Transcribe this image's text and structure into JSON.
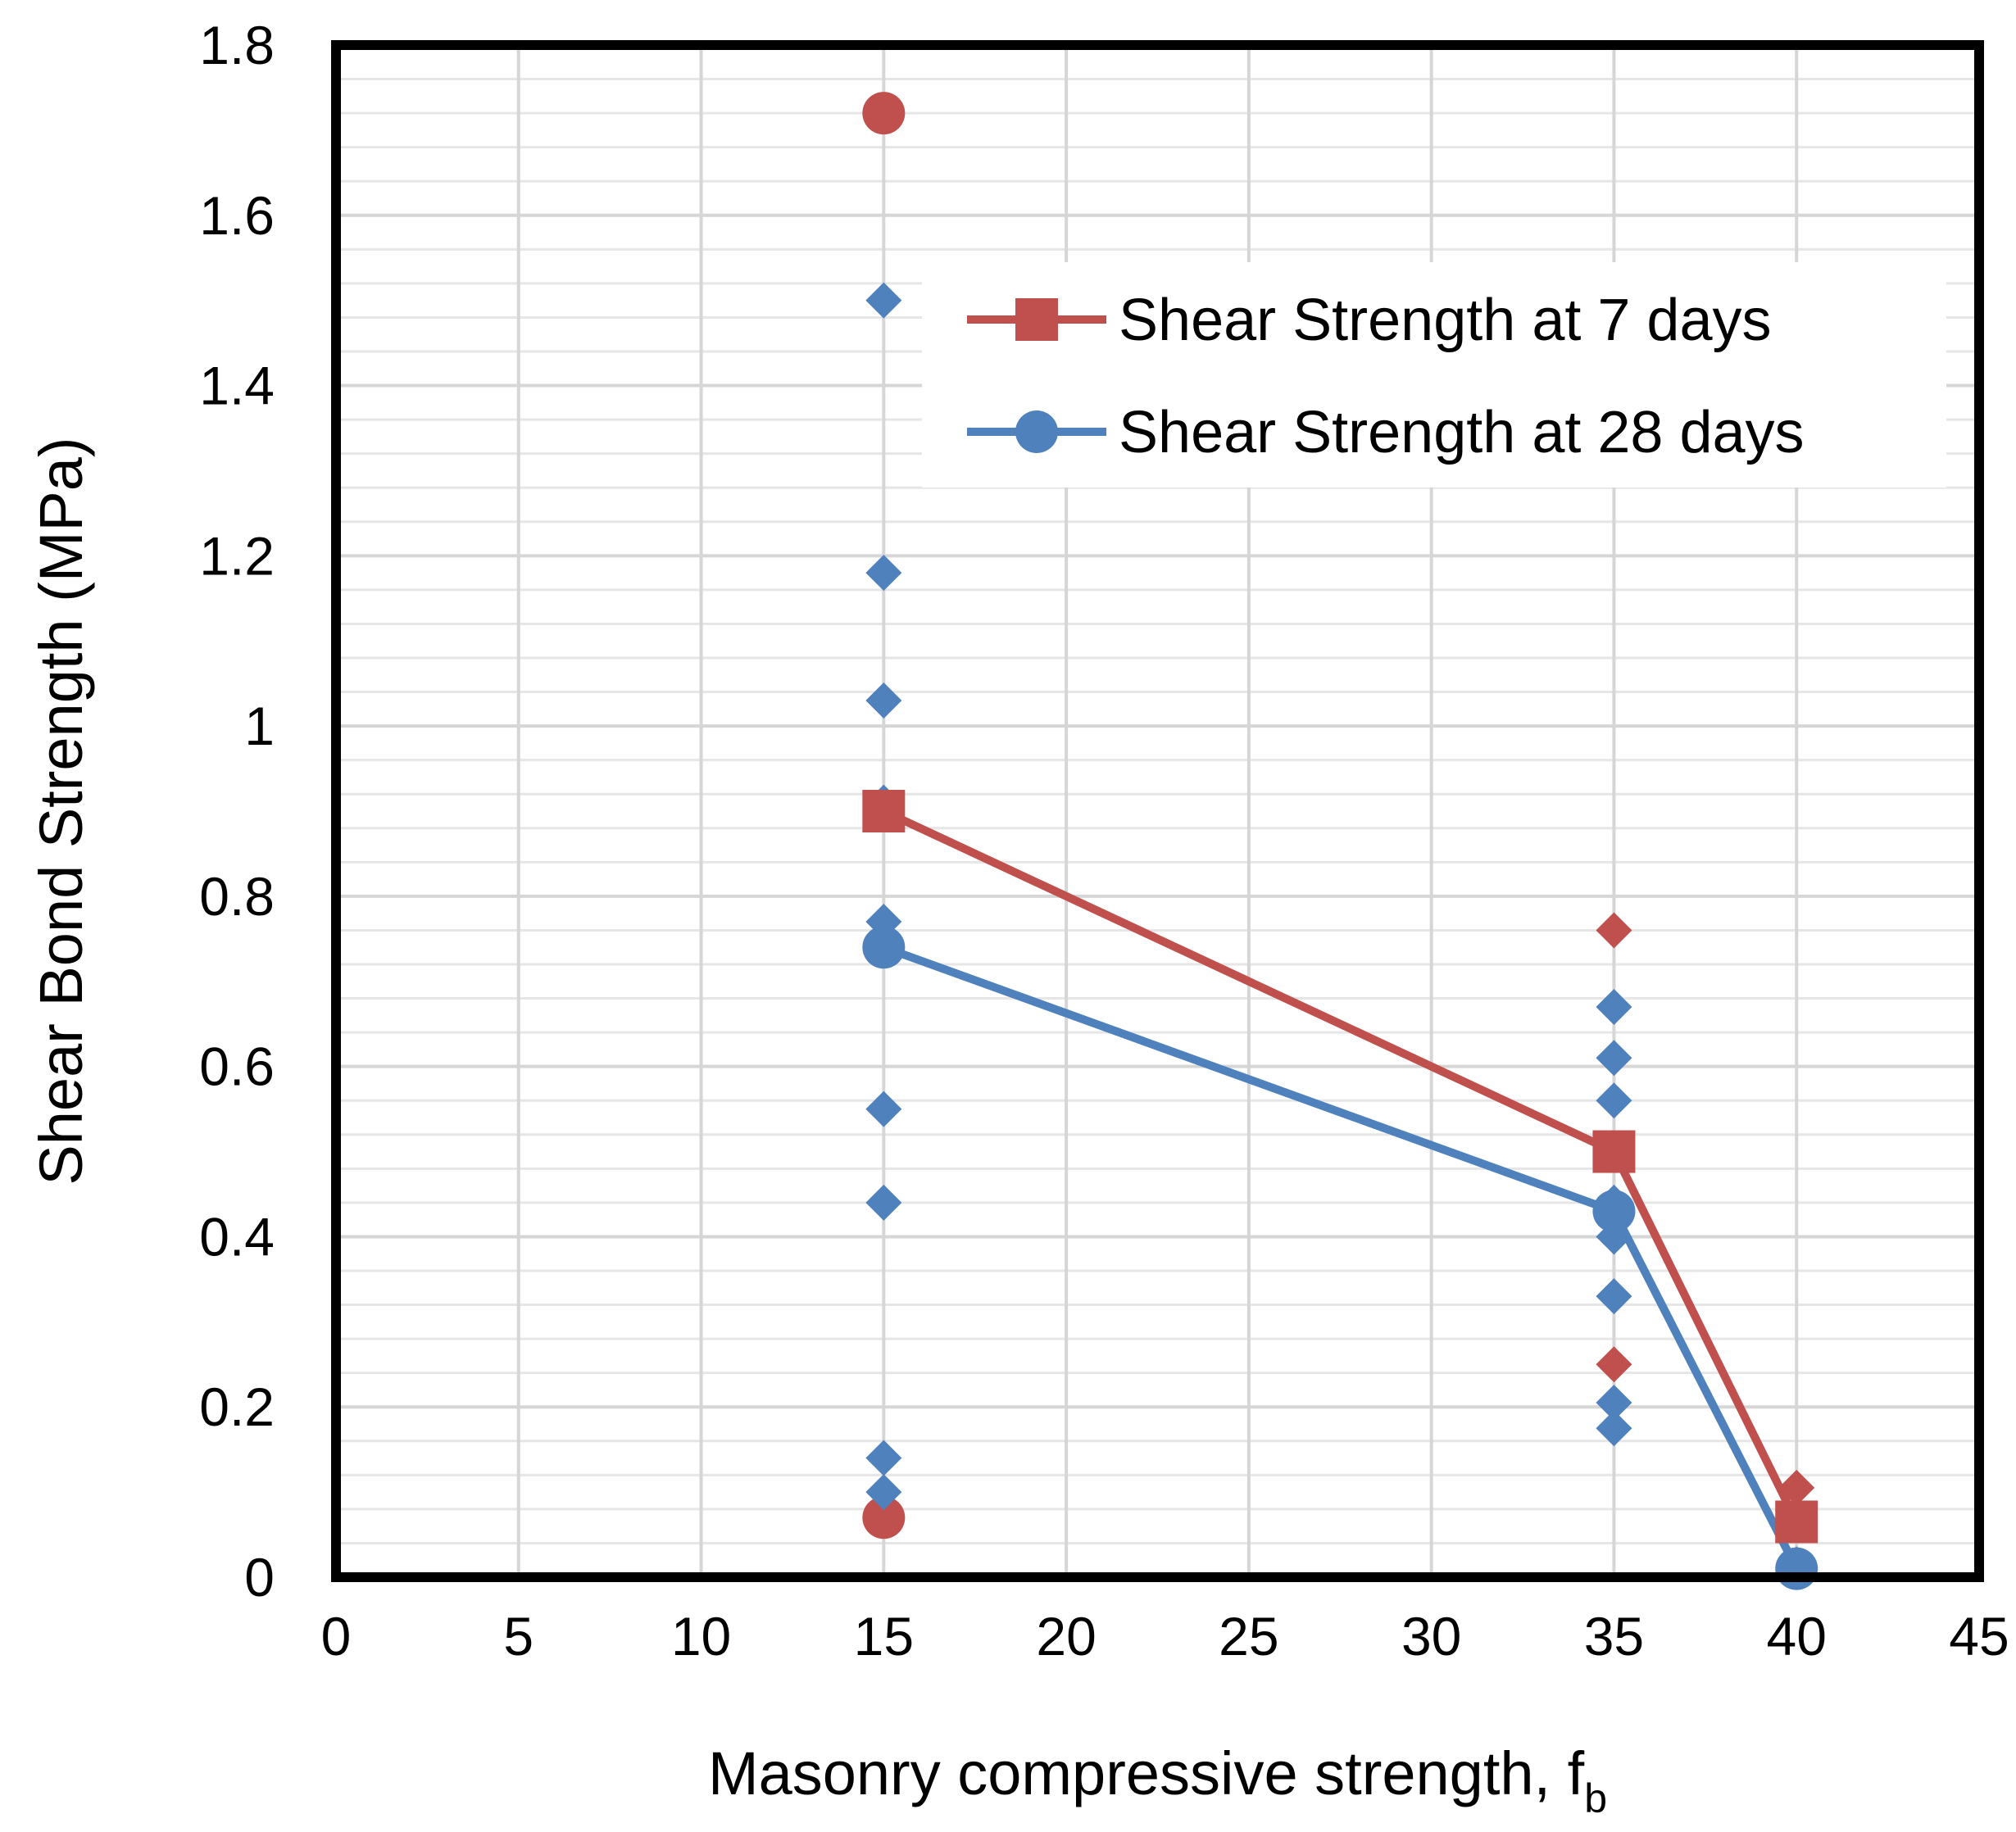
{
  "chart_data": {
    "type": "scatter",
    "title": "",
    "xlabel": "Masonry compressive strength, f",
    "xlabel_subscript": "b",
    "ylabel": "Shear Bond Strength (MPa)",
    "xlim": [
      0,
      45
    ],
    "ylim": [
      0,
      1.8
    ],
    "x_ticks": [
      0,
      5,
      10,
      15,
      20,
      25,
      30,
      35,
      40,
      45
    ],
    "y_ticks": [
      0,
      0.2,
      0.4,
      0.6,
      0.8,
      1.0,
      1.2,
      1.4,
      1.6,
      1.8
    ],
    "x_tick_labels": [
      "0",
      "5",
      "10",
      "15",
      "20",
      "25",
      "30",
      "35",
      "40",
      "45"
    ],
    "y_tick_labels": [
      "0",
      "0.2",
      "0.4",
      "0.6",
      "0.8",
      "1",
      "1.2",
      "1.4",
      "1.6",
      "1.8"
    ],
    "grid": true,
    "legend_position": "top-right",
    "series": [
      {
        "name": "Shear Strength at 7 days",
        "color": "#C0504D",
        "marker": "square",
        "points": [
          [
            15,
            0.9
          ],
          [
            35,
            0.5
          ],
          [
            40,
            0.065
          ]
        ]
      },
      {
        "name": "Shear Strength at 28 days",
        "color": "#4F81BD",
        "marker": "circle",
        "points": [
          [
            15,
            0.74
          ],
          [
            35,
            0.43
          ],
          [
            40,
            0.01
          ]
        ]
      }
    ],
    "scatter_points": [
      {
        "series": "7 days",
        "marker": "circle",
        "color": "#C0504D",
        "x": 15,
        "y": 1.72
      },
      {
        "series": "7 days",
        "marker": "circle",
        "color": "#C0504D",
        "x": 15,
        "y": 0.07
      },
      {
        "series": "7 days",
        "marker": "diamond",
        "color": "#C0504D",
        "x": 35,
        "y": 0.76
      },
      {
        "series": "7 days",
        "marker": "diamond",
        "color": "#C0504D",
        "x": 35,
        "y": 0.25
      },
      {
        "series": "7 days",
        "marker": "diamond",
        "color": "#C0504D",
        "x": 40,
        "y": 0.105
      },
      {
        "series": "28 days",
        "marker": "diamond",
        "color": "#4F81BD",
        "x": 15,
        "y": 1.5
      },
      {
        "series": "28 days",
        "marker": "diamond",
        "color": "#4F81BD",
        "x": 15,
        "y": 1.18
      },
      {
        "series": "28 days",
        "marker": "diamond",
        "color": "#4F81BD",
        "x": 15,
        "y": 1.03
      },
      {
        "series": "28 days",
        "marker": "diamond",
        "color": "#4F81BD",
        "x": 15,
        "y": 0.91
      },
      {
        "series": "28 days",
        "marker": "diamond",
        "color": "#4F81BD",
        "x": 15,
        "y": 0.77
      },
      {
        "series": "28 days",
        "marker": "diamond",
        "color": "#4F81BD",
        "x": 15,
        "y": 0.55
      },
      {
        "series": "28 days",
        "marker": "diamond",
        "color": "#4F81BD",
        "x": 15,
        "y": 0.44
      },
      {
        "series": "28 days",
        "marker": "diamond",
        "color": "#4F81BD",
        "x": 15,
        "y": 0.14
      },
      {
        "series": "28 days",
        "marker": "diamond",
        "color": "#4F81BD",
        "x": 15,
        "y": 0.1
      },
      {
        "series": "28 days",
        "marker": "diamond",
        "color": "#4F81BD",
        "x": 35,
        "y": 0.67
      },
      {
        "series": "28 days",
        "marker": "diamond",
        "color": "#4F81BD",
        "x": 35,
        "y": 0.61
      },
      {
        "series": "28 days",
        "marker": "diamond",
        "color": "#4F81BD",
        "x": 35,
        "y": 0.56
      },
      {
        "series": "28 days",
        "marker": "diamond",
        "color": "#4F81BD",
        "x": 35,
        "y": 0.44
      },
      {
        "series": "28 days",
        "marker": "diamond",
        "color": "#4F81BD",
        "x": 35,
        "y": 0.4
      },
      {
        "series": "28 days",
        "marker": "diamond",
        "color": "#4F81BD",
        "x": 35,
        "y": 0.33
      },
      {
        "series": "28 days",
        "marker": "diamond",
        "color": "#4F81BD",
        "x": 35,
        "y": 0.205
      },
      {
        "series": "28 days",
        "marker": "diamond",
        "color": "#4F81BD",
        "x": 35,
        "y": 0.175
      },
      {
        "series": "28 days",
        "marker": "diamond",
        "color": "#4F81BD",
        "x": 40,
        "y": 0.015
      }
    ]
  }
}
